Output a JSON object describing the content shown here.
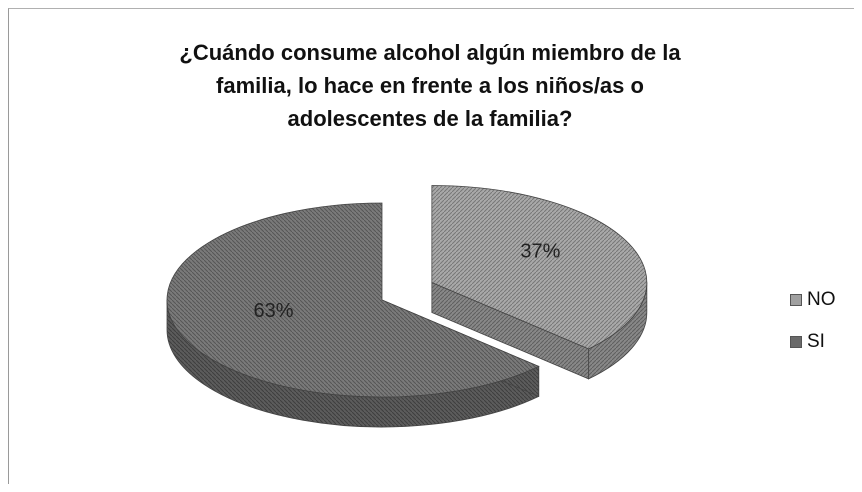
{
  "chart_data": {
    "type": "pie",
    "title": "¿Cuándo consume alcohol algún miembro de la familia, lo hace en frente a los niños/as o adolescentes de la familia?",
    "title_lines": [
      "¿Cuándo consume alcohol algún miembro de la",
      "familia, lo hace en frente a los niños/as o",
      "adolescentes de la familia?"
    ],
    "categories": [
      "NO",
      "SI"
    ],
    "values": [
      37,
      63
    ],
    "data_labels": [
      "37%",
      "63%"
    ],
    "colors": [
      "#9a9a9a",
      "#6e6e6e"
    ],
    "exploded": "NO",
    "style": "3d",
    "legend_position": "right"
  }
}
